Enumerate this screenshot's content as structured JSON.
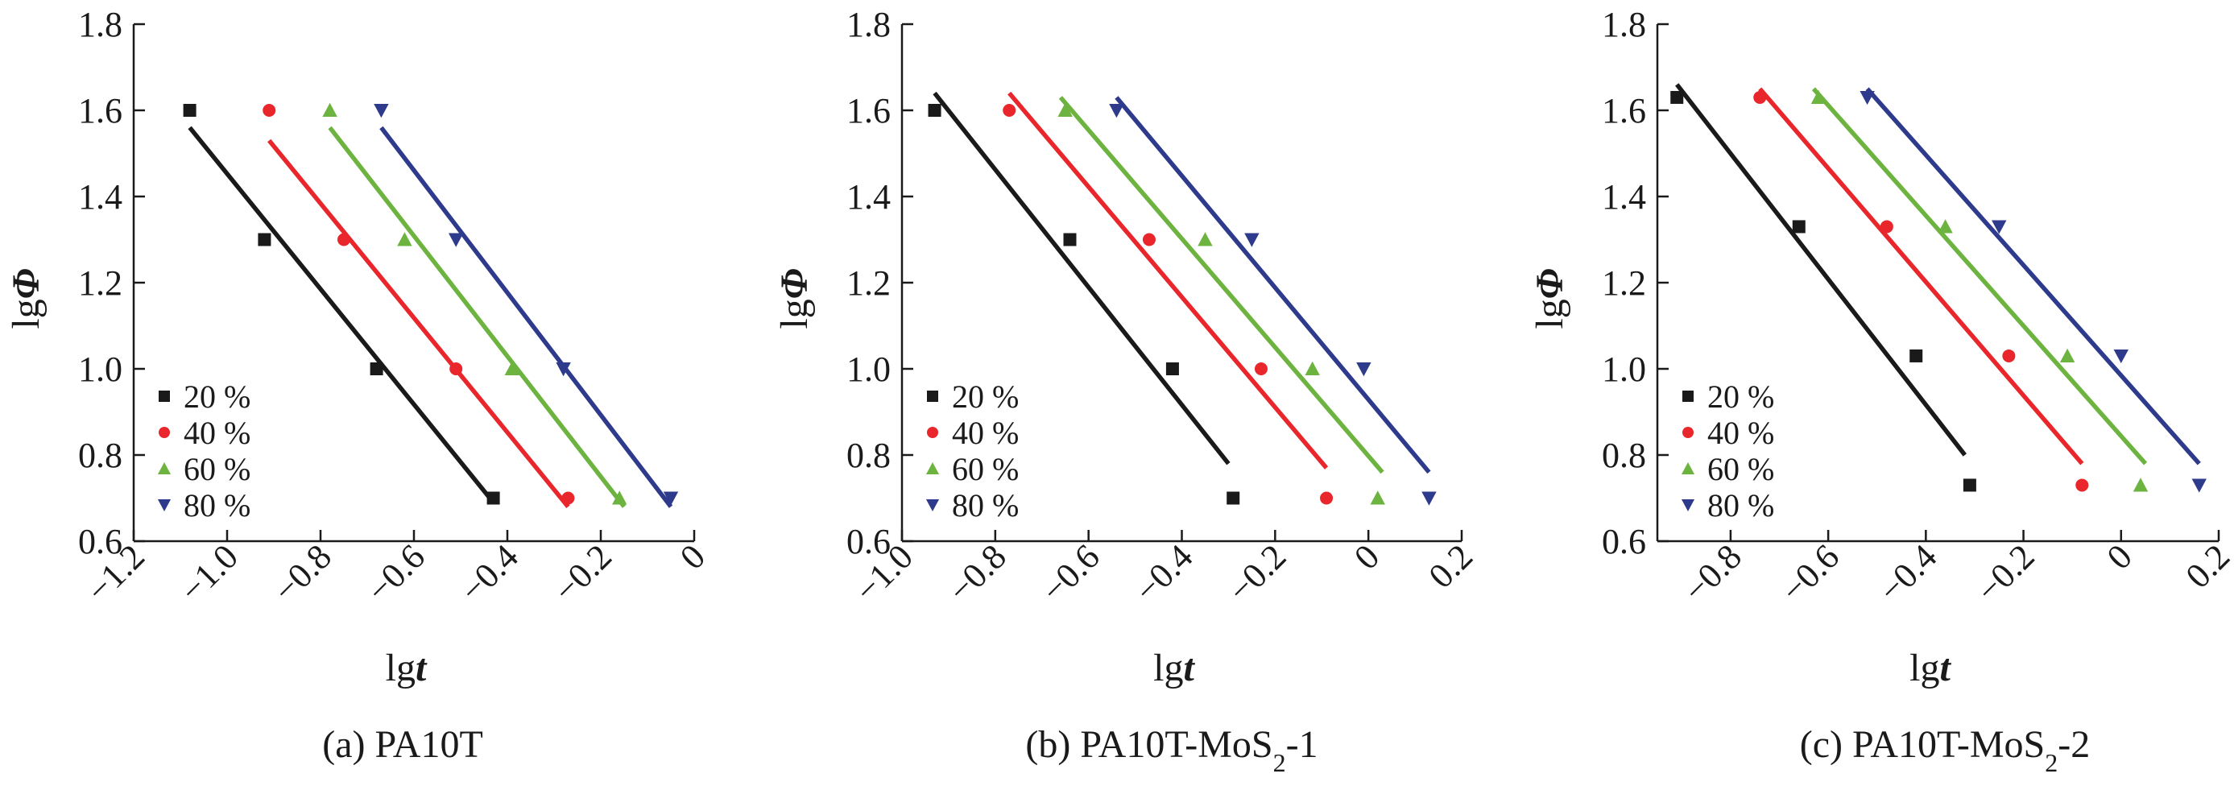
{
  "chart_data": [
    {
      "type": "scatter",
      "caption": {
        "prefix": "(a) PA10T",
        "sub": "",
        "suffix": ""
      },
      "xlabel": {
        "plain": "lg",
        "italic": "t"
      },
      "ylabel": {
        "plain": "lg",
        "italic": "Φ"
      },
      "xlim": [
        -1.2,
        0
      ],
      "ylim": [
        0.6,
        1.8
      ],
      "xticks": [
        -1.2,
        -1.0,
        -0.8,
        -0.6,
        -0.4,
        -0.2,
        0
      ],
      "xtick_labels": [
        "−1.2",
        "−1.0",
        "−0.8",
        "−0.6",
        "−0.4",
        "−0.2",
        "0"
      ],
      "yticks": [
        0.6,
        0.8,
        1.0,
        1.2,
        1.4,
        1.6,
        1.8
      ],
      "ytick_labels": [
        "0.6",
        "0.8",
        "1.0",
        "1.2",
        "1.4",
        "1.6",
        "1.8"
      ],
      "legend_position": "lower-left",
      "grid": false,
      "series": [
        {
          "name": "20 %",
          "color": "#1a1a1a",
          "marker": "square",
          "x": [
            -1.08,
            -0.92,
            -0.68,
            -0.43
          ],
          "y": [
            1.6,
            1.3,
            1.0,
            0.7
          ],
          "fit": {
            "x": [
              -1.08,
              -0.43
            ],
            "y": [
              1.56,
              0.69
            ]
          }
        },
        {
          "name": "40 %",
          "color": "#e8262b",
          "marker": "circle",
          "x": [
            -0.91,
            -0.75,
            -0.51,
            -0.27
          ],
          "y": [
            1.6,
            1.3,
            1.0,
            0.7
          ],
          "fit": {
            "x": [
              -0.91,
              -0.27
            ],
            "y": [
              1.53,
              0.68
            ]
          }
        },
        {
          "name": "60 %",
          "color": "#6cb33f",
          "marker": "triangle-up",
          "x": [
            -0.78,
            -0.62,
            -0.39,
            -0.16
          ],
          "y": [
            1.6,
            1.3,
            1.0,
            0.7
          ],
          "fit": {
            "x": [
              -0.78,
              -0.15
            ],
            "y": [
              1.56,
              0.68
            ]
          }
        },
        {
          "name": "80 %",
          "color": "#2e3a8c",
          "marker": "triangle-down",
          "x": [
            -0.67,
            -0.51,
            -0.28,
            -0.05
          ],
          "y": [
            1.6,
            1.3,
            1.0,
            0.7
          ],
          "fit": {
            "x": [
              -0.67,
              -0.05
            ],
            "y": [
              1.56,
              0.68
            ]
          }
        }
      ]
    },
    {
      "type": "scatter",
      "caption": {
        "prefix": "(b) PA10T-MoS",
        "sub": "2",
        "suffix": "-1"
      },
      "xlabel": {
        "plain": "lg",
        "italic": "t"
      },
      "ylabel": {
        "plain": "lg",
        "italic": "Φ"
      },
      "xlim": [
        -1.0,
        0.2
      ],
      "ylim": [
        0.6,
        1.8
      ],
      "xticks": [
        -1.0,
        -0.8,
        -0.6,
        -0.4,
        -0.2,
        0,
        0.2
      ],
      "xtick_labels": [
        "−1.0",
        "−0.8",
        "−0.6",
        "−0.4",
        "−0.2",
        "0",
        "0.2"
      ],
      "yticks": [
        0.6,
        0.8,
        1.0,
        1.2,
        1.4,
        1.6,
        1.8
      ],
      "ytick_labels": [
        "0.6",
        "0.8",
        "1.0",
        "1.2",
        "1.4",
        "1.6",
        "1.8"
      ],
      "legend_position": "lower-left",
      "grid": false,
      "series": [
        {
          "name": "20 %",
          "color": "#1a1a1a",
          "marker": "square",
          "x": [
            -0.93,
            -0.64,
            -0.42,
            -0.29
          ],
          "y": [
            1.6,
            1.3,
            1.0,
            0.7
          ],
          "fit": {
            "x": [
              -0.93,
              -0.3
            ],
            "y": [
              1.64,
              0.78
            ]
          }
        },
        {
          "name": "40 %",
          "color": "#e8262b",
          "marker": "circle",
          "x": [
            -0.77,
            -0.47,
            -0.23,
            -0.09
          ],
          "y": [
            1.6,
            1.3,
            1.0,
            0.7
          ],
          "fit": {
            "x": [
              -0.77,
              -0.09
            ],
            "y": [
              1.64,
              0.77
            ]
          }
        },
        {
          "name": "60 %",
          "color": "#6cb33f",
          "marker": "triangle-up",
          "x": [
            -0.65,
            -0.35,
            -0.12,
            0.02
          ],
          "y": [
            1.6,
            1.3,
            1.0,
            0.7
          ],
          "fit": {
            "x": [
              -0.66,
              0.03
            ],
            "y": [
              1.63,
              0.76
            ]
          }
        },
        {
          "name": "80 %",
          "color": "#2e3a8c",
          "marker": "triangle-down",
          "x": [
            -0.54,
            -0.25,
            -0.01,
            0.13
          ],
          "y": [
            1.6,
            1.3,
            1.0,
            0.7
          ],
          "fit": {
            "x": [
              -0.54,
              0.13
            ],
            "y": [
              1.63,
              0.76
            ]
          }
        }
      ]
    },
    {
      "type": "scatter",
      "caption": {
        "prefix": "(c) PA10T-MoS",
        "sub": "2",
        "suffix": "-2"
      },
      "xlabel": {
        "plain": "lg",
        "italic": "t"
      },
      "ylabel": {
        "plain": "lg",
        "italic": "Φ"
      },
      "xlim": [
        -0.95,
        0.2
      ],
      "ylim": [
        0.6,
        1.8
      ],
      "xticks": [
        -0.8,
        -0.6,
        -0.4,
        -0.2,
        0,
        0.2
      ],
      "xtick_labels": [
        "−0.8",
        "−0.6",
        "−0.4",
        "−0.2",
        "0",
        "0.2"
      ],
      "yticks": [
        0.6,
        0.8,
        1.0,
        1.2,
        1.4,
        1.6,
        1.8
      ],
      "ytick_labels": [
        "0.6",
        "0.8",
        "1.0",
        "1.2",
        "1.4",
        "1.6",
        "1.8"
      ],
      "legend_position": "lower-left",
      "grid": false,
      "series": [
        {
          "name": "20 %",
          "color": "#1a1a1a",
          "marker": "square",
          "x": [
            -0.91,
            -0.66,
            -0.42,
            -0.31
          ],
          "y": [
            1.63,
            1.33,
            1.03,
            0.73
          ],
          "fit": {
            "x": [
              -0.91,
              -0.32
            ],
            "y": [
              1.66,
              0.8
            ]
          }
        },
        {
          "name": "40 %",
          "color": "#e8262b",
          "marker": "circle",
          "x": [
            -0.74,
            -0.48,
            -0.23,
            -0.08
          ],
          "y": [
            1.63,
            1.33,
            1.03,
            0.73
          ],
          "fit": {
            "x": [
              -0.74,
              -0.08
            ],
            "y": [
              1.65,
              0.78
            ]
          }
        },
        {
          "name": "60 %",
          "color": "#6cb33f",
          "marker": "triangle-up",
          "x": [
            -0.62,
            -0.36,
            -0.11,
            0.04
          ],
          "y": [
            1.63,
            1.33,
            1.03,
            0.73
          ],
          "fit": {
            "x": [
              -0.63,
              0.05
            ],
            "y": [
              1.65,
              0.78
            ]
          }
        },
        {
          "name": "80 %",
          "color": "#2e3a8c",
          "marker": "triangle-down",
          "x": [
            -0.52,
            -0.25,
            0.0,
            0.16
          ],
          "y": [
            1.63,
            1.33,
            1.03,
            0.73
          ],
          "fit": {
            "x": [
              -0.52,
              0.16
            ],
            "y": [
              1.65,
              0.78
            ]
          }
        }
      ]
    }
  ]
}
